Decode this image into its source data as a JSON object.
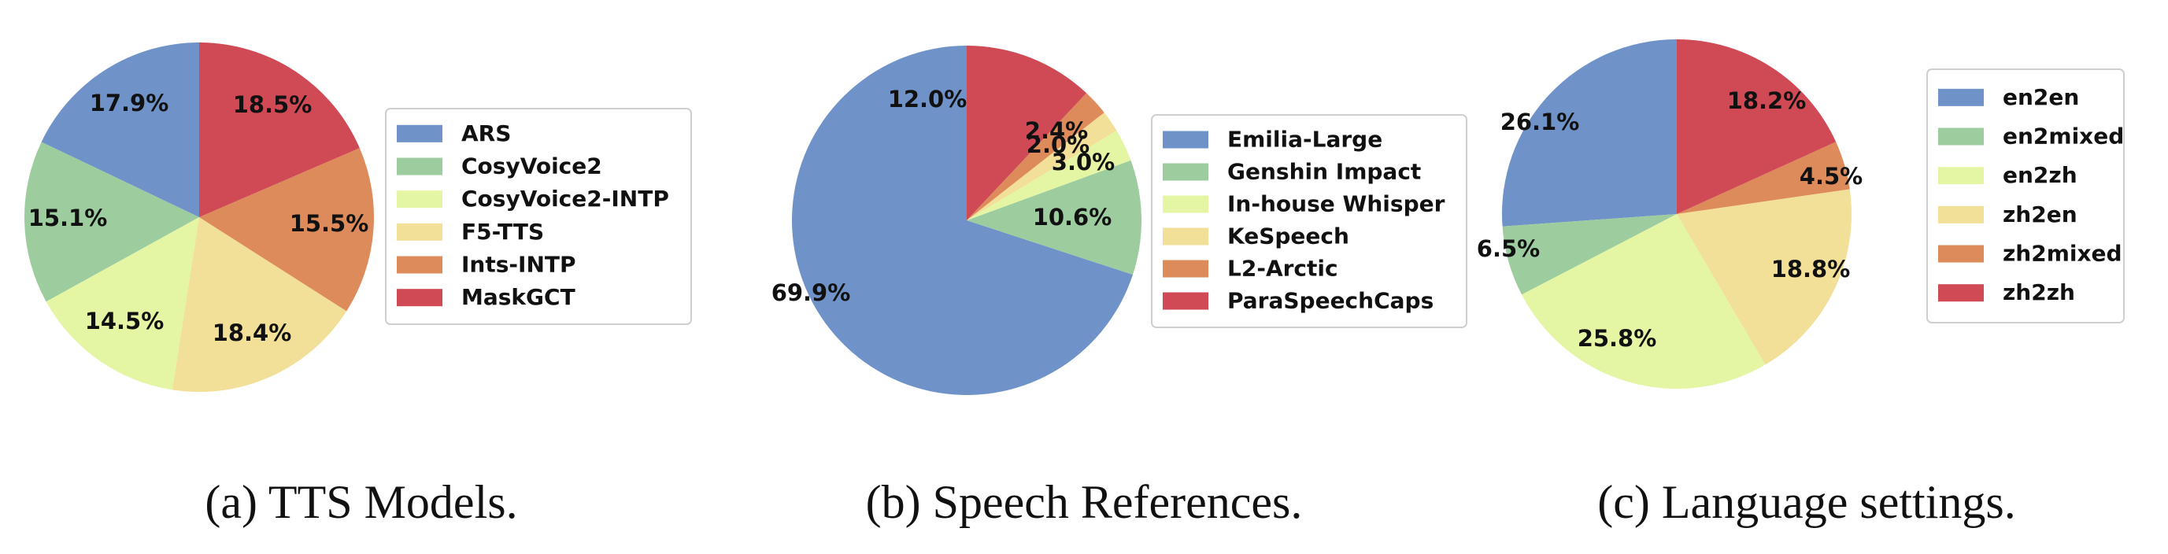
{
  "chart_data": [
    {
      "type": "pie",
      "caption": "(a) TTS Models.",
      "categories": [
        "ARS",
        "CosyVoice2",
        "CosyVoice2-INTP",
        "F5-TTS",
        "Ints-INTP",
        "MaskGCT"
      ],
      "values": [
        17.9,
        15.1,
        14.5,
        18.4,
        15.5,
        18.5
      ],
      "labels": [
        "17.9%",
        "15.1%",
        "14.5%",
        "18.4%",
        "15.5%",
        "18.5%"
      ],
      "legend": "right",
      "start_angle": 90,
      "direction": "counterclockwise"
    },
    {
      "type": "pie",
      "caption": "(b) Speech References.",
      "categories": [
        "Emilia-Large",
        "Genshin Impact",
        "In-house Whisper",
        "KeSpeech",
        "L2-Arctic",
        "ParaSpeechCaps"
      ],
      "values": [
        69.9,
        10.6,
        3.0,
        2.0,
        2.4,
        12.0
      ],
      "labels": [
        "69.9%",
        "10.6%",
        "3.0%",
        "2.0%",
        "2.4%",
        "12.0%"
      ],
      "legend": "right",
      "start_angle": 90,
      "direction": "counterclockwise"
    },
    {
      "type": "pie",
      "caption": "(c) Language settings.",
      "categories": [
        "en2en",
        "en2mixed",
        "en2zh",
        "zh2en",
        "zh2mixed",
        "zh2zh"
      ],
      "values": [
        26.1,
        6.5,
        25.8,
        18.8,
        4.5,
        18.2
      ],
      "labels": [
        "26.1%",
        "6.5%",
        "25.8%",
        "18.8%",
        "4.5%",
        "18.2%"
      ],
      "legend": "right",
      "start_angle": 90,
      "direction": "counterclockwise"
    }
  ],
  "colors": [
    "#6f93c8",
    "#9dcd9f",
    "#e4f6a4",
    "#f2df98",
    "#de8b5b",
    "#d04a56"
  ]
}
